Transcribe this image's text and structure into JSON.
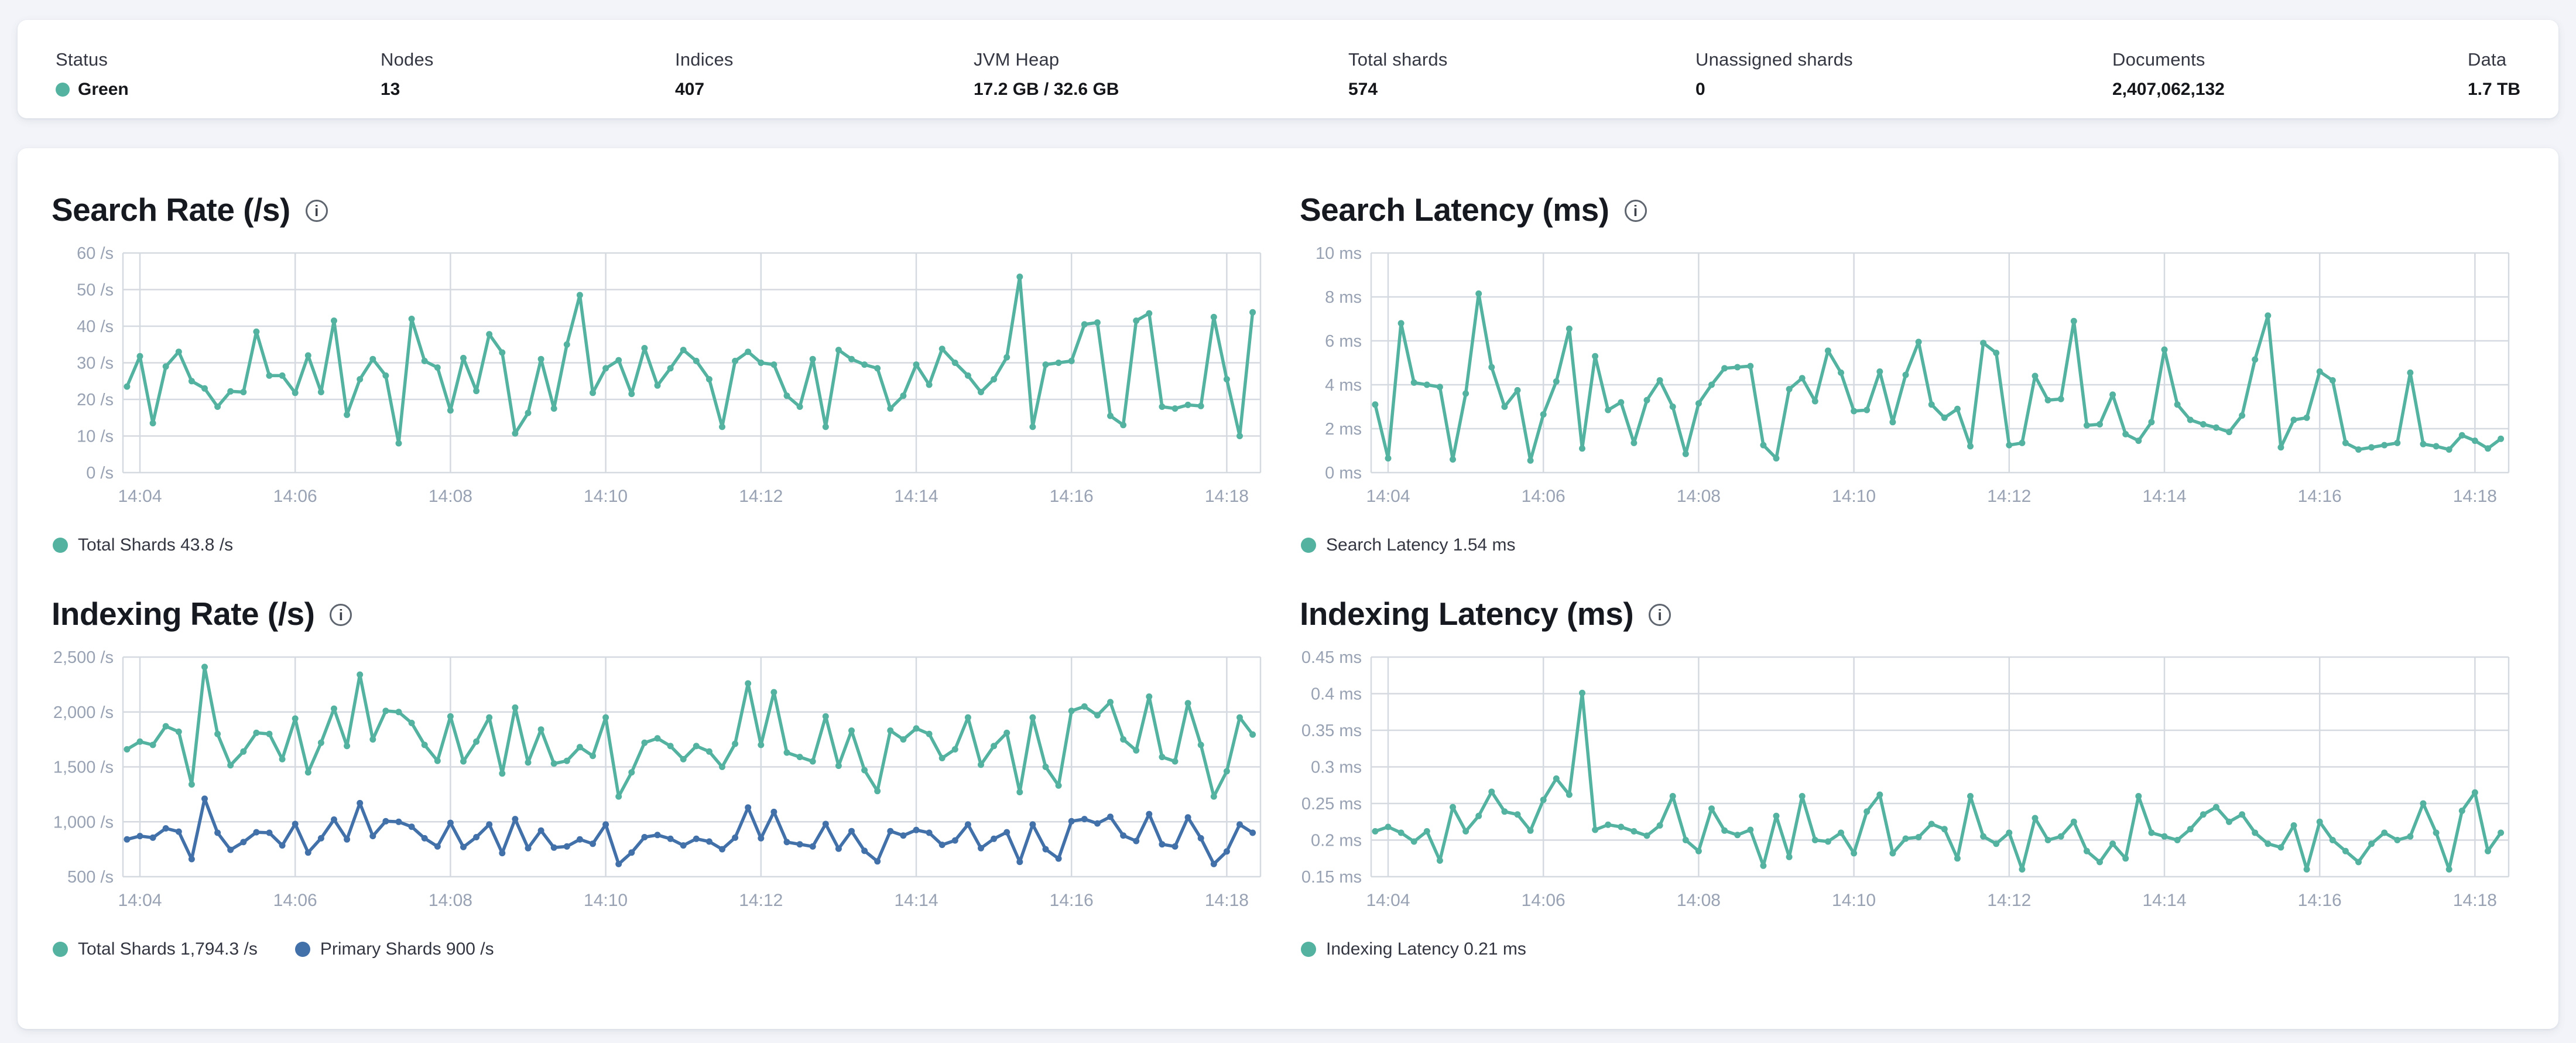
{
  "theme": {
    "page_bg": "#f2f4f9",
    "card_bg": "#ffffff",
    "teal": "#54b2a1",
    "blue": "#4270a8",
    "title_color": "#16191f",
    "label_color": "#343741",
    "value_color": "#14161a",
    "axis_text": "#98a2b3",
    "grid": "#d5d9e0",
    "status_green": "#54b2a1"
  },
  "icons": {
    "info": "i"
  },
  "topbar": {
    "stats": [
      {
        "label": "Status",
        "value": "Green",
        "dot": true
      },
      {
        "label": "Nodes",
        "value": "13"
      },
      {
        "label": "Indices",
        "value": "407"
      },
      {
        "label": "JVM Heap",
        "value": "17.2 GB / 32.6 GB"
      },
      {
        "label": "Total shards",
        "value": "574"
      },
      {
        "label": "Unassigned shards",
        "value": "0"
      },
      {
        "label": "Documents",
        "value": "2,407,062,132"
      },
      {
        "label": "Data",
        "value": "1.7 TB"
      }
    ]
  },
  "chart_data": {
    "type": "line",
    "grid": true,
    "legend_position": "bottom",
    "x_ticks": [
      "14:04",
      "14:06",
      "14:08",
      "14:10",
      "14:12",
      "14:14",
      "14:16",
      "14:18"
    ],
    "sample_interval_sec": 10,
    "x_start_offset_steps": -1,
    "charts": [
      {
        "id": "search-rate",
        "title": "Search Rate (/s)",
        "ylabel": "/s",
        "y": {
          "min": 0,
          "max": 60,
          "ticks": [
            {
              "v": 60,
              "label": "60 /s"
            },
            {
              "v": 50,
              "label": "50 /s"
            },
            {
              "v": 40,
              "label": "40 /s"
            },
            {
              "v": 30,
              "label": "30 /s"
            },
            {
              "v": 20,
              "label": "20 /s"
            },
            {
              "v": 10,
              "label": "10 /s"
            },
            {
              "v": 0,
              "label": "0 /s"
            }
          ]
        },
        "series": [
          {
            "name": "Total Shards",
            "color_key": "teal",
            "values": [
              23.5,
              31.8,
              13.5,
              29,
              33,
              25,
              23,
              18,
              22.2,
              22,
              38.5,
              26.5,
              26.5,
              21.8,
              32,
              22,
              41.5,
              15.8,
              25.5,
              31,
              26.5,
              8,
              42,
              30.5,
              28.7,
              17,
              31.3,
              22.3,
              37.8,
              32.8,
              10.7,
              16.3,
              31,
              17.5,
              35,
              48.5,
              21.8,
              28.5,
              30.7,
              21.5,
              34,
              23.8,
              28.5,
              33.5,
              30.5,
              25.5,
              12.5,
              30.5,
              33,
              30,
              29.5,
              21,
              18,
              31,
              12.5,
              33.5,
              31,
              29.5,
              28.5,
              17.5,
              21,
              29.5,
              24,
              33.8,
              30,
              26.5,
              22,
              25.5,
              31.5,
              53.5,
              12.5,
              29.5,
              30,
              30.5,
              40.5,
              41,
              15.5,
              13,
              41.5,
              43.5,
              18,
              17.5,
              18.5,
              18.2,
              42.5,
              25.5,
              10,
              43.8
            ]
          }
        ],
        "legend": [
          {
            "text": "Total Shards 43.8 /s",
            "color_key": "teal"
          }
        ]
      },
      {
        "id": "search-latency",
        "title": "Search Latency (ms)",
        "ylabel": "ms",
        "y": {
          "min": 0,
          "max": 10,
          "ticks": [
            {
              "v": 10,
              "label": "10 ms"
            },
            {
              "v": 8,
              "label": "8 ms"
            },
            {
              "v": 6,
              "label": "6 ms"
            },
            {
              "v": 4,
              "label": "4 ms"
            },
            {
              "v": 2,
              "label": "2 ms"
            },
            {
              "v": 0,
              "label": "0 ms"
            }
          ]
        },
        "series": [
          {
            "name": "Search Latency",
            "color_key": "teal",
            "values": [
              3.1,
              0.65,
              6.8,
              4.1,
              4,
              3.9,
              0.6,
              3.6,
              8.15,
              4.8,
              3,
              3.75,
              0.55,
              2.65,
              4.15,
              6.55,
              1.1,
              5.3,
              2.85,
              3.2,
              1.35,
              3.3,
              4.2,
              3,
              0.85,
              3.15,
              4,
              4.75,
              4.8,
              4.85,
              1.25,
              0.65,
              3.8,
              4.3,
              3.25,
              5.55,
              4.55,
              2.8,
              2.85,
              4.6,
              2.3,
              4.45,
              5.95,
              3.1,
              2.5,
              2.9,
              1.2,
              5.9,
              5.45,
              1.25,
              1.35,
              4.4,
              3.3,
              3.35,
              6.9,
              2.15,
              2.2,
              3.55,
              1.75,
              1.45,
              2.3,
              5.6,
              3.1,
              2.4,
              2.2,
              2.05,
              1.85,
              2.6,
              5.15,
              7.15,
              1.15,
              2.4,
              2.5,
              4.6,
              4.2,
              1.35,
              1.05,
              1.15,
              1.25,
              1.35,
              4.55,
              1.3,
              1.2,
              1.05,
              1.7,
              1.45,
              1.1,
              1.54
            ]
          }
        ],
        "legend": [
          {
            "text": "Search Latency 1.54 ms",
            "color_key": "teal"
          }
        ]
      },
      {
        "id": "indexing-rate",
        "title": "Indexing Rate (/s)",
        "ylabel": "/s",
        "y": {
          "min": 500,
          "max": 2500,
          "ticks": [
            {
              "v": 2500,
              "label": "2,500 /s"
            },
            {
              "v": 2000,
              "label": "2,000 /s"
            },
            {
              "v": 1500,
              "label": "1,500 /s"
            },
            {
              "v": 1000,
              "label": "1,000 /s"
            },
            {
              "v": 500,
              "label": "500 /s"
            }
          ]
        },
        "series": [
          {
            "name": "Total Shards",
            "color_key": "teal",
            "values": [
              1660,
              1730,
              1700,
              1870,
              1820,
              1340,
              2410,
              1800,
              1515,
              1640,
              1810,
              1800,
              1570,
              1940,
              1450,
              1720,
              2030,
              1690,
              2340,
              1750,
              2010,
              2000,
              1900,
              1700,
              1555,
              1960,
              1550,
              1730,
              1950,
              1440,
              2040,
              1540,
              1840,
              1530,
              1555,
              1680,
              1600,
              1950,
              1230,
              1450,
              1720,
              1760,
              1690,
              1570,
              1690,
              1640,
              1500,
              1710,
              2260,
              1700,
              2180,
              1630,
              1590,
              1550,
              1960,
              1510,
              1830,
              1470,
              1280,
              1830,
              1750,
              1850,
              1800,
              1580,
              1660,
              1950,
              1520,
              1690,
              1810,
              1270,
              1950,
              1500,
              1330,
              2010,
              2050,
              1970,
              2090,
              1750,
              1650,
              2140,
              1590,
              1550,
              2080,
              1700,
              1230,
              1460,
              1950,
              1794.3
            ]
          },
          {
            "name": "Primary Shards",
            "color_key": "blue",
            "values": [
              840,
              870,
              855,
              940,
              910,
              660,
              1210,
              900,
              745,
              815,
              905,
              900,
              785,
              980,
              720,
              850,
              1020,
              840,
              1170,
              870,
              1005,
              1000,
              955,
              850,
              775,
              990,
              770,
              860,
              975,
              715,
              1025,
              760,
              920,
              765,
              775,
              840,
              800,
              975,
              615,
              720,
              860,
              880,
              845,
              785,
              845,
              820,
              750,
              855,
              1130,
              850,
              1090,
              815,
              795,
              775,
              980,
              755,
              915,
              735,
              640,
              915,
              875,
              925,
              900,
              790,
              830,
              975,
              760,
              845,
              905,
              635,
              975,
              750,
              665,
              1005,
              1025,
              985,
              1045,
              875,
              825,
              1070,
              795,
              775,
              1040,
              850,
              615,
              730,
              975,
              900
            ]
          }
        ],
        "legend": [
          {
            "text": "Total Shards 1,794.3 /s",
            "color_key": "teal"
          },
          {
            "text": "Primary Shards 900 /s",
            "color_key": "blue"
          }
        ]
      },
      {
        "id": "indexing-latency",
        "title": "Indexing Latency (ms)",
        "ylabel": "ms",
        "y": {
          "min": 0.15,
          "max": 0.45,
          "ticks": [
            {
              "v": 0.45,
              "label": "0.45 ms"
            },
            {
              "v": 0.4,
              "label": "0.4 ms"
            },
            {
              "v": 0.35,
              "label": "0.35 ms"
            },
            {
              "v": 0.3,
              "label": "0.3 ms"
            },
            {
              "v": 0.25,
              "label": "0.25 ms"
            },
            {
              "v": 0.2,
              "label": "0.2 ms"
            },
            {
              "v": 0.15,
              "label": "0.15 ms"
            }
          ]
        },
        "series": [
          {
            "name": "Indexing Latency",
            "color_key": "teal",
            "values": [
              0.212,
              0.218,
              0.21,
              0.198,
              0.212,
              0.172,
              0.245,
              0.212,
              0.233,
              0.266,
              0.239,
              0.235,
              0.213,
              0.255,
              0.284,
              0.262,
              0.401,
              0.214,
              0.221,
              0.218,
              0.212,
              0.206,
              0.22,
              0.26,
              0.2,
              0.185,
              0.243,
              0.213,
              0.207,
              0.214,
              0.165,
              0.233,
              0.177,
              0.26,
              0.2,
              0.198,
              0.21,
              0.182,
              0.239,
              0.262,
              0.182,
              0.202,
              0.204,
              0.222,
              0.215,
              0.175,
              0.26,
              0.205,
              0.195,
              0.21,
              0.16,
              0.23,
              0.2,
              0.205,
              0.225,
              0.185,
              0.17,
              0.195,
              0.175,
              0.26,
              0.21,
              0.205,
              0.2,
              0.215,
              0.235,
              0.245,
              0.225,
              0.235,
              0.21,
              0.195,
              0.19,
              0.22,
              0.16,
              0.225,
              0.2,
              0.185,
              0.17,
              0.195,
              0.21,
              0.2,
              0.205,
              0.25,
              0.21,
              0.16,
              0.24,
              0.265,
              0.185,
              0.21
            ]
          }
        ],
        "legend": [
          {
            "text": "Indexing Latency 0.21 ms",
            "color_key": "teal"
          }
        ]
      }
    ]
  }
}
